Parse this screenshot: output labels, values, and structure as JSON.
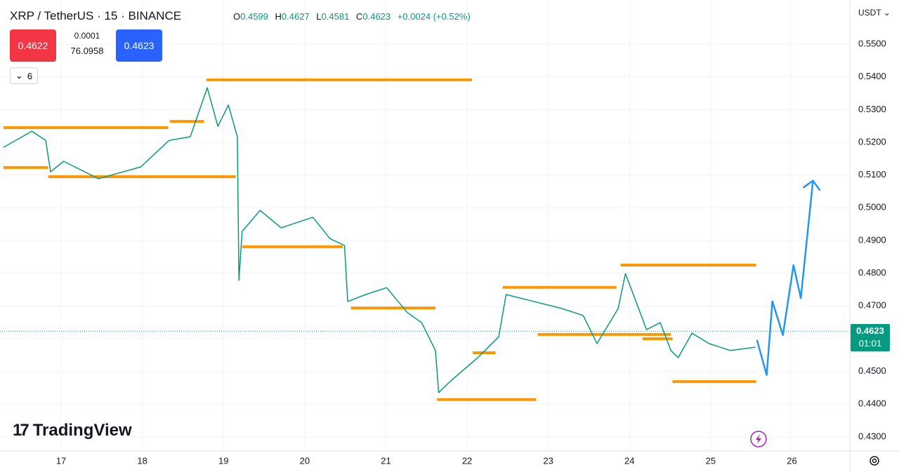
{
  "header": {
    "title": "XRP / TetherUS · 15 · BINANCE",
    "ohlc": [
      {
        "label": "O",
        "value": "0.4599"
      },
      {
        "label": "H",
        "value": "0.4627"
      },
      {
        "label": "L",
        "value": "0.4581"
      },
      {
        "label": "C",
        "value": "0.4623"
      }
    ],
    "change": "+0.0024 (+0.52%)"
  },
  "trade": {
    "sell": "0.4622",
    "spread": "0.0001",
    "quantity": "76.0958",
    "buy": "0.4623"
  },
  "indicators_count": "6",
  "currency": "USDT",
  "countdown": "01:01",
  "brand": "TradingView",
  "chart_data": {
    "type": "line",
    "color": "#089981",
    "x": [
      16.29,
      16.64,
      16.81,
      16.87,
      17.03,
      17.46,
      17.98,
      18.33,
      18.59,
      18.8,
      18.93,
      19.06,
      19.17,
      19.19,
      19.23,
      19.45,
      19.71,
      20.1,
      20.31,
      20.49,
      20.53,
      20.75,
      21.01,
      21.26,
      21.44,
      21.61,
      21.65,
      21.78,
      22.13,
      22.39,
      22.48,
      22.82,
      23.17,
      23.43,
      23.6,
      23.86,
      23.95,
      24.08,
      24.21,
      24.38,
      24.51,
      24.6,
      24.77,
      24.98,
      25.24,
      25.55
    ],
    "values": [
      0.5185,
      0.5234,
      0.5206,
      0.511,
      0.5142,
      0.5089,
      0.5125,
      0.5206,
      0.5217,
      0.5367,
      0.5249,
      0.5314,
      0.5217,
      0.4778,
      0.4928,
      0.4992,
      0.4939,
      0.4971,
      0.4906,
      0.4885,
      0.4714,
      0.4735,
      0.4756,
      0.4681,
      0.4649,
      0.4564,
      0.4435,
      0.4467,
      0.4542,
      0.4606,
      0.4735,
      0.4714,
      0.4692,
      0.4671,
      0.4585,
      0.4692,
      0.4799,
      0.4714,
      0.4628,
      0.4649,
      0.4564,
      0.4542,
      0.4617,
      0.4585,
      0.4564,
      0.4574
    ],
    "current_price": 0.4623,
    "levels": [
      {
        "x": [
          16.29,
          18.32
        ],
        "value": 0.5245
      },
      {
        "x": [
          16.29,
          16.84
        ],
        "value": 0.5123
      },
      {
        "x": [
          16.84,
          19.15
        ],
        "value": 0.5095
      },
      {
        "x": [
          18.34,
          18.76
        ],
        "value": 0.5264
      },
      {
        "x": [
          18.79,
          22.06
        ],
        "value": 0.5391
      },
      {
        "x": [
          19.23,
          20.47
        ],
        "value": 0.4881
      },
      {
        "x": [
          20.57,
          21.61
        ],
        "value": 0.4694
      },
      {
        "x": [
          21.63,
          22.85
        ],
        "value": 0.4414
      },
      {
        "x": [
          22.07,
          22.35
        ],
        "value": 0.4557
      },
      {
        "x": [
          22.44,
          23.84
        ],
        "value": 0.4757
      },
      {
        "x": [
          22.87,
          24.51
        ],
        "value": 0.4613
      },
      {
        "x": [
          23.89,
          25.56
        ],
        "value": 0.4825
      },
      {
        "x": [
          24.16,
          24.53
        ],
        "value": 0.46
      },
      {
        "x": [
          24.53,
          25.56
        ],
        "value": 0.4469
      }
    ],
    "level_color": "#ff9800",
    "projection": {
      "color": "#2196f3",
      "x": [
        25.57,
        25.69,
        25.76,
        25.89,
        26.02,
        26.11,
        26.26
      ],
      "values": [
        0.4596,
        0.4489,
        0.4714,
        0.4611,
        0.4825,
        0.4724,
        0.5083
      ]
    },
    "xlim": [
      16.247,
      26.714
    ],
    "xticks": [
      17,
      18,
      19,
      20,
      21,
      22,
      23,
      24,
      25,
      26
    ],
    "ylim": [
      0.4257,
      0.5635
    ],
    "yticks": [
      {
        "value": 0.43,
        "label": "0.4300"
      },
      {
        "value": 0.44,
        "label": "0.4400"
      },
      {
        "value": 0.45,
        "label": "0.4500"
      },
      {
        "value": 0.46,
        "label": "0.4600"
      },
      {
        "value": 0.47,
        "label": "0.4700"
      },
      {
        "value": 0.48,
        "label": "0.4800"
      },
      {
        "value": 0.49,
        "label": "0.4900"
      },
      {
        "value": 0.5,
        "label": "0.5000"
      },
      {
        "value": 0.51,
        "label": "0.5100"
      },
      {
        "value": 0.52,
        "label": "0.5200"
      },
      {
        "value": 0.53,
        "label": "0.5300"
      },
      {
        "value": 0.54,
        "label": "0.5400"
      },
      {
        "value": 0.55,
        "label": "0.5500"
      }
    ],
    "grid": true
  }
}
